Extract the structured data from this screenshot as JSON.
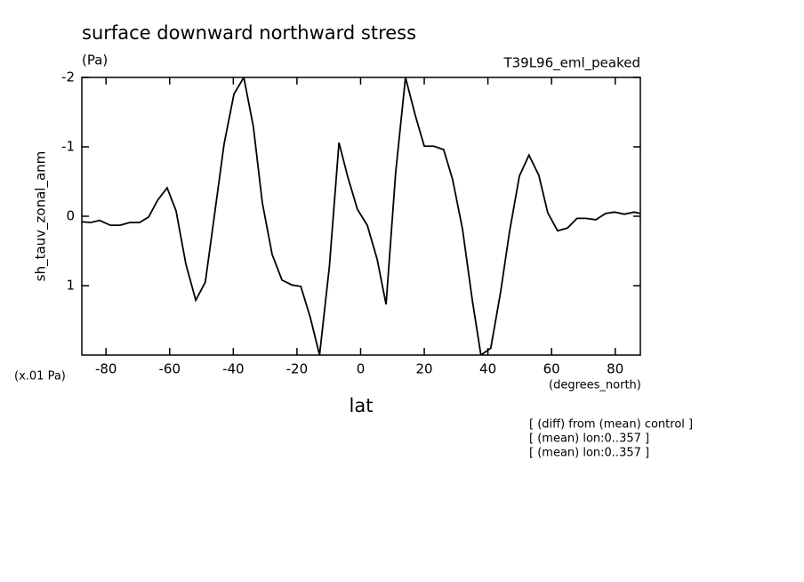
{
  "chart_data": {
    "type": "line",
    "title": "surface downward northward stress",
    "subtitle": "(Pa)",
    "run_label": "T39L96_eml_peaked",
    "y_label": "sh_tauv_zonal_anm",
    "y_unit": "(x.01 Pa)",
    "x_label": "lat",
    "x_unit": "(degrees_north)",
    "notes": [
      "[ (diff) from (mean) control ]",
      "[ (mean) lon:0..357 ]",
      "[ (mean) lon:0..357 ]"
    ],
    "x": [
      -87.6,
      -84.8,
      -82.0,
      -78.6,
      -75.6,
      -72.5,
      -69.4,
      -66.6,
      -63.8,
      -60.8,
      -58.0,
      -54.9,
      -51.8,
      -48.8,
      -46.0,
      -42.9,
      -39.8,
      -36.7,
      -33.7,
      -30.9,
      -27.8,
      -24.7,
      -21.6,
      -18.8,
      -15.8,
      -12.9,
      -9.8,
      -6.8,
      -4.0,
      -1.0,
      2.1,
      5.2,
      8.0,
      11.0,
      14.1,
      17.2,
      20.0,
      23.0,
      26.1,
      28.9,
      32.0,
      35.1,
      37.8,
      40.9,
      44.0,
      46.8,
      49.9,
      52.9,
      56.0,
      58.8,
      61.9,
      65.0,
      68.0,
      70.8,
      73.9,
      77.0,
      79.8,
      82.9,
      86.0,
      87.9
    ],
    "series": [
      {
        "color": "#000000",
        "values": [
          0.08,
          0.09,
          0.06,
          0.13,
          0.13,
          0.09,
          0.09,
          0.01,
          -0.23,
          -0.41,
          -0.08,
          0.69,
          1.21,
          0.95,
          0.01,
          -1.04,
          -1.76,
          -2.0,
          -1.29,
          -0.2,
          0.55,
          0.92,
          0.99,
          1.01,
          1.46,
          2.0,
          0.72,
          -1.06,
          -0.56,
          -0.1,
          0.13,
          0.62,
          1.27,
          -0.62,
          -2.0,
          -1.45,
          -1.01,
          -1.01,
          -0.96,
          -0.53,
          0.18,
          1.21,
          2.0,
          1.9,
          1.09,
          0.22,
          -0.58,
          -0.88,
          -0.59,
          -0.05,
          0.21,
          0.17,
          0.03,
          0.03,
          0.05,
          -0.04,
          -0.06,
          -0.03,
          -0.06,
          -0.04
        ]
      }
    ],
    "xlim": [
      -87.6,
      87.9
    ],
    "xticks": [
      -80,
      -60,
      -40,
      -20,
      0,
      20,
      40,
      60,
      80
    ],
    "ylim": [
      2,
      -2
    ],
    "yticks": [
      -2,
      -1,
      0,
      1
    ]
  }
}
